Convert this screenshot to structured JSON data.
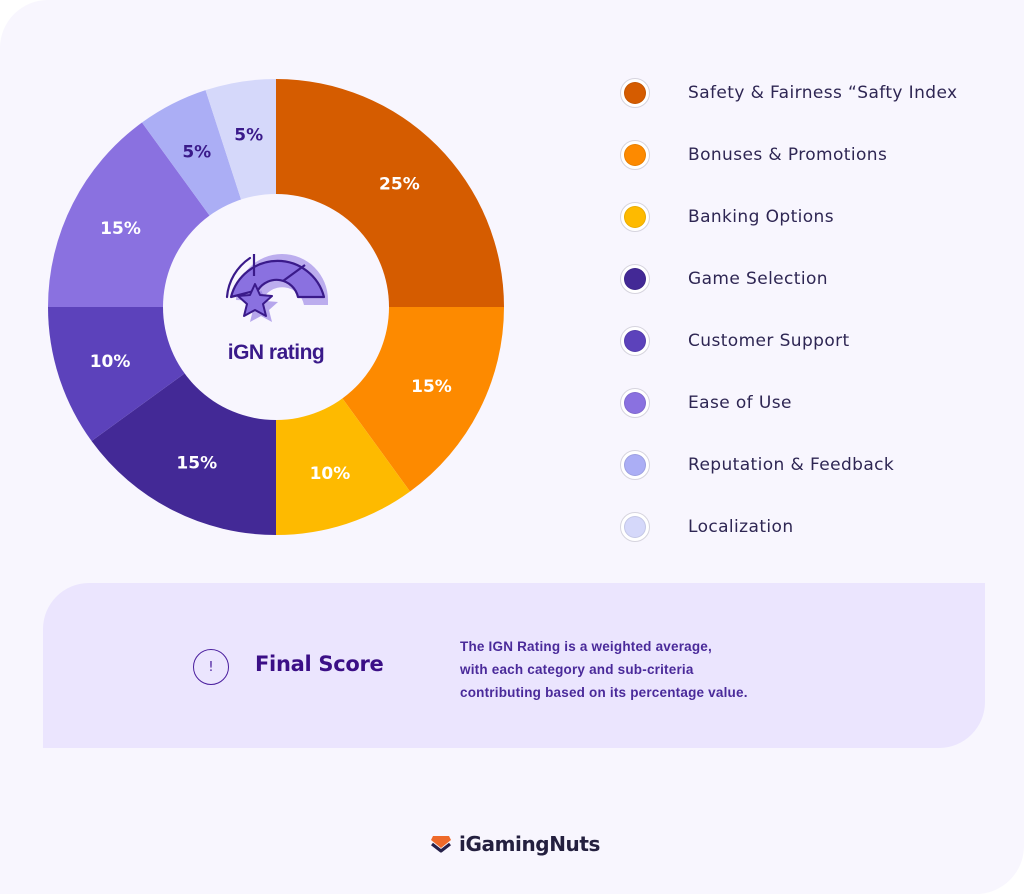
{
  "chart_data": {
    "type": "pie",
    "variant": "donut",
    "title": "iGN rating",
    "categories": [
      "Safety & Fairness “Safty Index",
      "Bonuses & Promotions",
      "Banking Options",
      "Game Selection",
      "Customer Support",
      "Ease of Use",
      "Reputation & Feedback",
      "Localization"
    ],
    "values": [
      25,
      15,
      10,
      15,
      10,
      15,
      5,
      5
    ],
    "labels": [
      "25%",
      "15%",
      "10%",
      "15%",
      "10%",
      "15%",
      "5%",
      "5%"
    ],
    "colors": [
      "#d55c00",
      "#fd8a00",
      "#feba00",
      "#432996",
      "#5c42bb",
      "#8a71e0",
      "#abaef5",
      "#d5d8fa"
    ],
    "label_colors": [
      "#ffffff",
      "#ffffff",
      "#ffffff",
      "#ffffff",
      "#ffffff",
      "#ffffff",
      "#3a1a8a",
      "#3a1a8a"
    ],
    "start_angle_deg": 0,
    "direction": "clockwise",
    "legend_position": "right"
  },
  "center": {
    "title": "iGN rating",
    "icon": "gauge-star-icon",
    "icon_color": "#8a71e0",
    "outline_color": "#3a1a8a"
  },
  "legend": {
    "items": [
      {
        "label": "Safety & Fairness “Safty Index",
        "color": "#d55c00"
      },
      {
        "label": "Bonuses & Promotions",
        "color": "#fd8a00"
      },
      {
        "label": "Banking Options",
        "color": "#feba00"
      },
      {
        "label": "Game Selection",
        "color": "#432996"
      },
      {
        "label": "Customer Support",
        "color": "#5c42bb"
      },
      {
        "label": "Ease of Use",
        "color": "#8a71e0"
      },
      {
        "label": "Reputation & Feedback",
        "color": "#abaef5"
      },
      {
        "label": "Localization",
        "color": "#d5d8fa"
      }
    ]
  },
  "final_score": {
    "icon": "exclamation-circle-icon",
    "icon_glyph": "!",
    "title": "Final Score",
    "description_lines": [
      "The IGN Rating is a weighted average,",
      "with each category and sub-criteria",
      "contributing based on its percentage value."
    ]
  },
  "brand": {
    "name": "iGamingNuts",
    "logo_icon": "gem-chevron-logo-icon",
    "logo_colors": {
      "top": "#ee6a2a",
      "bottom": "#26214a"
    }
  },
  "colors": {
    "page_background": "#f8f6fe",
    "card_background": "#ebe5fe",
    "text_dark": "#2e2653",
    "accent_purple": "#3b0f86"
  }
}
